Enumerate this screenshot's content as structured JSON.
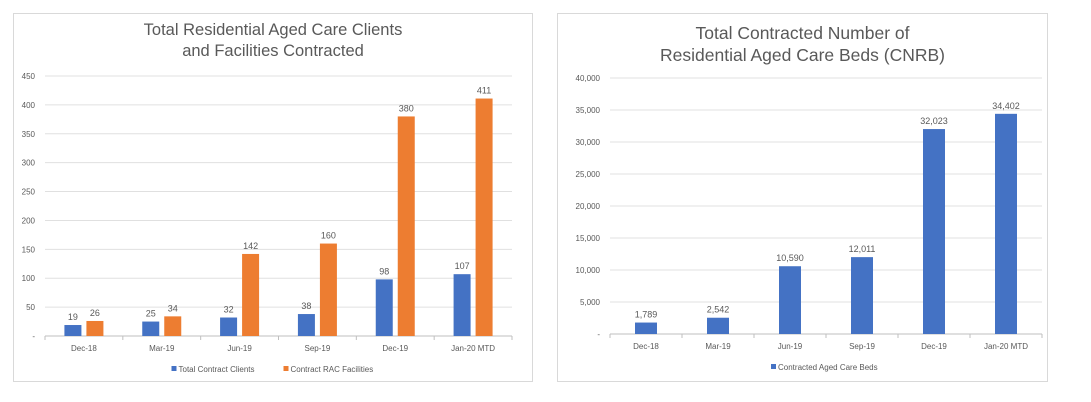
{
  "chart_data": [
    {
      "type": "bar",
      "title_lines": [
        "Total Residential Aged Care Clients",
        "and Facilities Contracted"
      ],
      "categories": [
        "Dec-18",
        "Mar-19",
        "Jun-19",
        "Sep-19",
        "Dec-19",
        "Jan-20 MTD"
      ],
      "series": [
        {
          "name": "Total Contract Clients",
          "color": "#4472c4",
          "values": [
            19,
            25,
            32,
            38,
            98,
            107
          ],
          "labels": [
            "19",
            "25",
            "32",
            "38",
            "98",
            "107"
          ]
        },
        {
          "name": "Contract RAC Facilities",
          "color": "#ed7d31",
          "values": [
            26,
            34,
            142,
            160,
            380,
            411
          ],
          "labels": [
            "26",
            "34",
            "142",
            "160",
            "380",
            "411"
          ]
        }
      ],
      "ylim": [
        0,
        450
      ],
      "yticks": [
        0,
        50,
        100,
        150,
        200,
        250,
        300,
        350,
        400,
        450
      ],
      "ytick_labels": [
        "-",
        "50",
        "100",
        "150",
        "200",
        "250",
        "300",
        "350",
        "400",
        "450"
      ],
      "grid": true,
      "legend": "bottom"
    },
    {
      "type": "bar",
      "title_lines": [
        "Total Contracted Number of",
        "Residential Aged Care Beds (CNRB)"
      ],
      "categories": [
        "Dec-18",
        "Mar-19",
        "Jun-19",
        "Sep-19",
        "Dec-19",
        "Jan-20 MTD"
      ],
      "series": [
        {
          "name": "Contracted Aged Care Beds",
          "color": "#4472c4",
          "values": [
            1789,
            2542,
            10590,
            12011,
            32023,
            34402
          ],
          "labels": [
            "1,789",
            "2,542",
            "10,590",
            "12,011",
            "32,023",
            "34,402"
          ]
        }
      ],
      "ylim": [
        0,
        40000
      ],
      "yticks": [
        0,
        5000,
        10000,
        15000,
        20000,
        25000,
        30000,
        35000,
        40000
      ],
      "ytick_labels": [
        "-",
        "5,000",
        "10,000",
        "15,000",
        "20,000",
        "25,000",
        "30,000",
        "35,000",
        "40,000"
      ],
      "grid": true,
      "legend": "bottom"
    }
  ]
}
